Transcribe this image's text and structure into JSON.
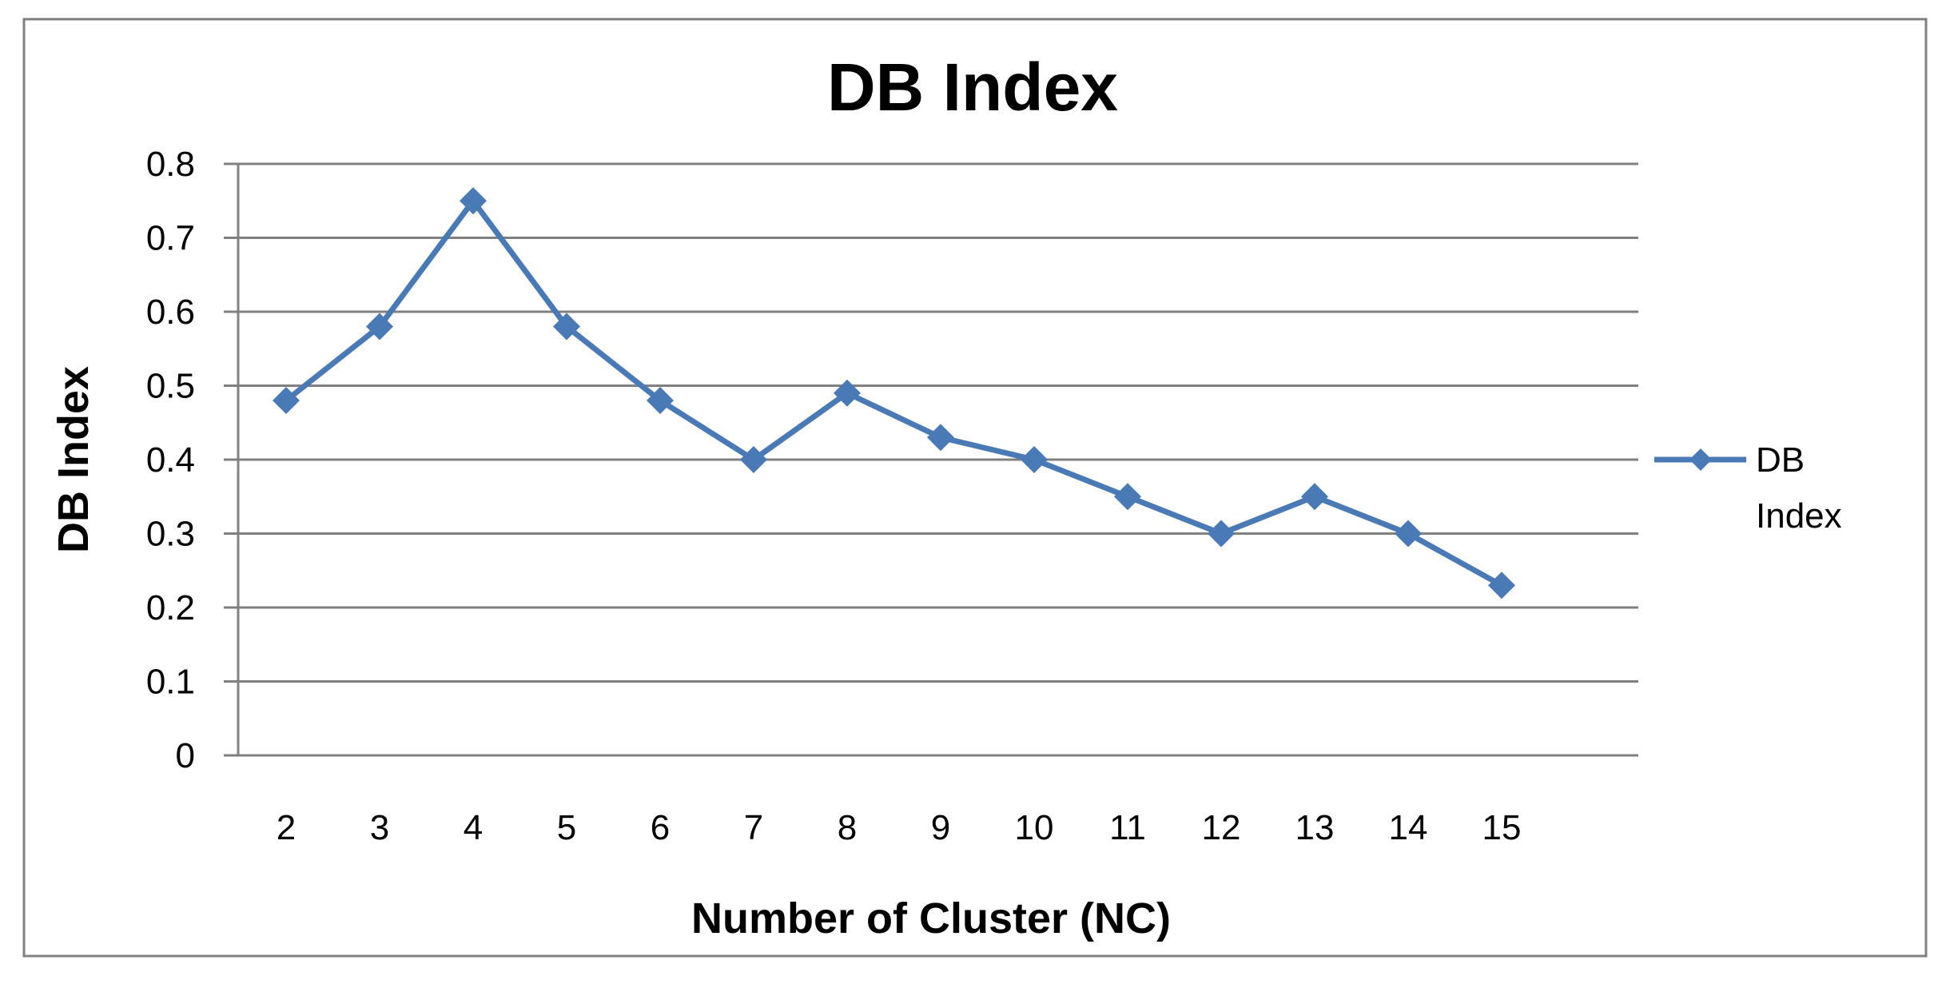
{
  "chart_data": {
    "type": "line",
    "title": "DB Index",
    "xlabel": "Number of Cluster (NC)",
    "ylabel": "DB Index",
    "categories": [
      "2",
      "3",
      "4",
      "5",
      "6",
      "7",
      "8",
      "9",
      "10",
      "11",
      "12",
      "13",
      "14",
      "15"
    ],
    "y_ticks": [
      "0",
      "0.1",
      "0.2",
      "0.3",
      "0.4",
      "0.5",
      "0.6",
      "0.7",
      "0.8"
    ],
    "ylim": [
      0,
      0.8
    ],
    "grid": true,
    "legend_position": "right",
    "series": [
      {
        "name": "DB Index",
        "legend_lines": [
          "DB",
          "Index"
        ],
        "color": "#4a7ab5",
        "marker": "diamond",
        "values": [
          0.48,
          0.58,
          0.75,
          0.58,
          0.48,
          0.4,
          0.49,
          0.43,
          0.4,
          0.35,
          0.3,
          0.35,
          0.3,
          0.23
        ]
      }
    ]
  }
}
